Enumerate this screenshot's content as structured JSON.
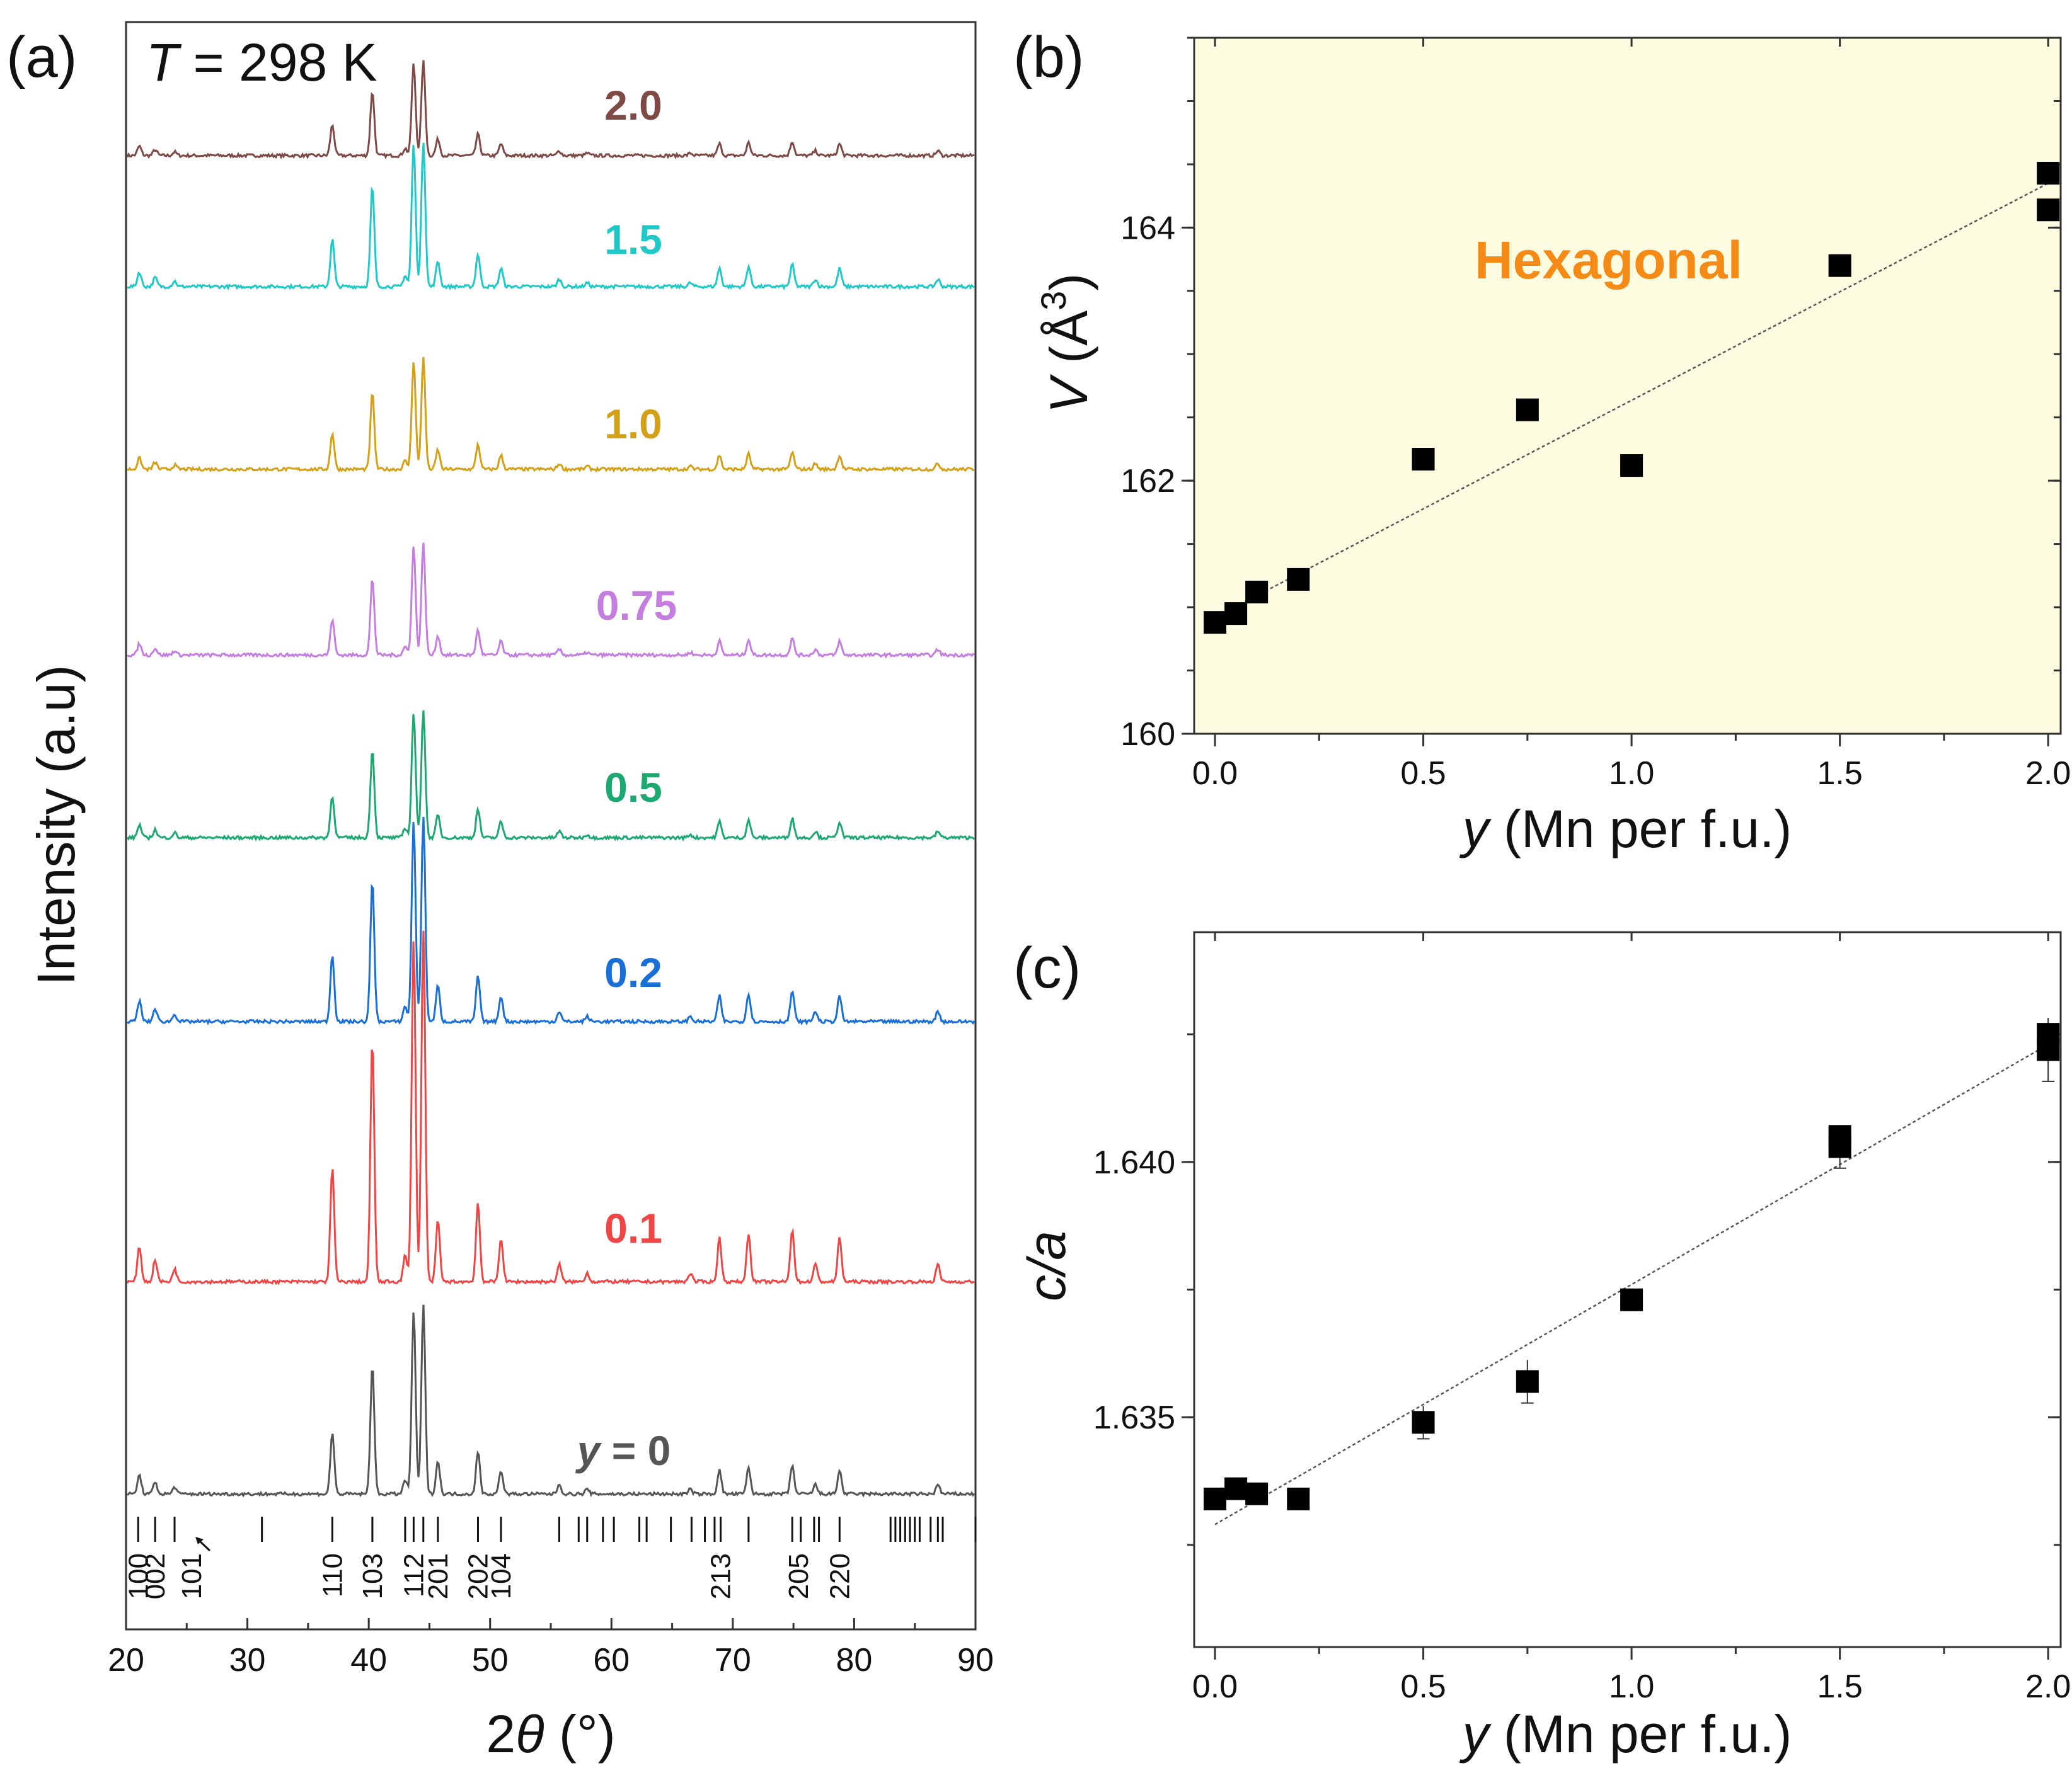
{
  "chart_data": [
    {
      "type": "line",
      "panel": "(a)",
      "annotation_prefix": "T",
      "annotation_suffix": " = 298 K",
      "xlabel_prefix": "2",
      "xlabel_symbol": "θ",
      "xlabel_suffix": " (°)",
      "ylabel": "Intensity (a.u)",
      "xlim": [
        20,
        90
      ],
      "xticks": [
        "20",
        "30",
        "40",
        "50",
        "60",
        "70",
        "80",
        "90"
      ],
      "peaks": [
        {
          "x": 21.1,
          "h": 0.08
        },
        {
          "x": 22.4,
          "h": 0.05
        },
        {
          "x": 24.0,
          "h": 0.03
        },
        {
          "x": 37.0,
          "h": 0.26
        },
        {
          "x": 40.3,
          "h": 0.55
        },
        {
          "x": 43.0,
          "h": 0.06
        },
        {
          "x": 43.7,
          "h": 0.78
        },
        {
          "x": 44.5,
          "h": 0.8
        },
        {
          "x": 45.7,
          "h": 0.14
        },
        {
          "x": 49.0,
          "h": 0.18
        },
        {
          "x": 50.9,
          "h": 0.1
        },
        {
          "x": 55.7,
          "h": 0.04
        },
        {
          "x": 58.0,
          "h": 0.02
        },
        {
          "x": 66.5,
          "h": 0.02
        },
        {
          "x": 68.9,
          "h": 0.1
        },
        {
          "x": 71.3,
          "h": 0.11
        },
        {
          "x": 74.9,
          "h": 0.12
        },
        {
          "x": 76.8,
          "h": 0.04
        },
        {
          "x": 78.8,
          "h": 0.1
        },
        {
          "x": 86.9,
          "h": 0.04
        }
      ],
      "series": [
        {
          "name": "2.0",
          "label": "2.0",
          "color": "#7f4a46",
          "scale": 0.55
        },
        {
          "name": "1.5",
          "label": "1.5",
          "color": "#20c8c8",
          "scale": 0.85
        },
        {
          "name": "1.0",
          "label": "1.0",
          "color": "#d4a017",
          "scale": 0.65
        },
        {
          "name": "0.75",
          "label": "0.75",
          "color": "#c57ee0",
          "scale": 0.65
        },
        {
          "name": "0.5",
          "label": "0.5",
          "color": "#1ca870",
          "scale": 0.75
        },
        {
          "name": "0.2",
          "label": "0.2",
          "color": "#1a6fd6",
          "scale": 1.2
        },
        {
          "name": "0.1",
          "label": "0.1",
          "color": "#f04545",
          "scale": 2.05
        },
        {
          "name": "0",
          "label_prefix": "y",
          "label": " = 0",
          "color": "#555555",
          "scale": 1.1
        }
      ],
      "reflection_ticks": [
        21.0,
        22.4,
        24.0,
        31.2,
        37.0,
        40.3,
        43.0,
        43.7,
        44.5,
        45.7,
        49.0,
        50.9,
        55.7,
        57.3,
        58.0,
        59.3,
        60.2,
        62.3,
        62.9,
        64.9,
        66.6,
        67.7,
        68.5,
        69.0,
        71.3,
        74.9,
        75.6,
        76.7,
        77.1,
        78.8,
        83.0,
        83.4,
        83.8,
        84.2,
        84.6,
        85.0,
        85.4,
        86.3,
        86.9,
        87.3,
        90.0
      ],
      "reflection_labels": [
        {
          "x": 21.0,
          "label": "100"
        },
        {
          "x": 22.4,
          "label": "002"
        },
        {
          "x": 25.4,
          "label": "101"
        },
        {
          "x": 37.0,
          "label": "110"
        },
        {
          "x": 40.3,
          "label": "103"
        },
        {
          "x": 43.7,
          "label": "112"
        },
        {
          "x": 45.7,
          "label": "201"
        },
        {
          "x": 49.0,
          "label": "202"
        },
        {
          "x": 50.9,
          "label": "104"
        },
        {
          "x": 69.0,
          "label": "213"
        },
        {
          "x": 75.4,
          "label": "205"
        },
        {
          "x": 78.8,
          "label": "220"
        }
      ]
    },
    {
      "type": "scatter",
      "panel": "(b)",
      "annotation": "Hexagonal",
      "annotation_color": "#f58a17",
      "background": "#fdfbe0",
      "xlabel_prefix": "y",
      "xlabel_suffix": " (Mn per f.u.)",
      "ylabel_prefix": "V",
      "ylabel_suffix": " (Å",
      "ylabel_sup": "3",
      "ylabel_close": ")",
      "xlim": [
        -0.05,
        2.03
      ],
      "ylim": [
        160,
        165.5
      ],
      "xticks": [
        "0.0",
        "0.5",
        "1.0",
        "1.5",
        "2.0"
      ],
      "yticks": [
        "160",
        "162",
        "164"
      ],
      "x": [
        0.0,
        0.05,
        0.1,
        0.2,
        0.5,
        0.75,
        1.0,
        1.5,
        2.0,
        2.0
      ],
      "y": [
        160.88,
        160.95,
        161.12,
        161.22,
        162.17,
        162.56,
        162.12,
        163.7,
        164.14,
        164.43
      ],
      "fit": {
        "x": [
          0.0,
          2.0
        ],
        "y": [
          160.92,
          164.35
        ]
      }
    },
    {
      "type": "scatter",
      "panel": "(c)",
      "xlabel_prefix": "y",
      "xlabel_suffix": " (Mn per f.u.)",
      "ylabel": "c/a",
      "xlim": [
        -0.05,
        2.03
      ],
      "ylim": [
        1.6305,
        1.6445
      ],
      "xticks": [
        "0.0",
        "0.5",
        "1.0",
        "1.5",
        "2.0"
      ],
      "yticks": [
        "1.635",
        "1.640"
      ],
      "x": [
        0.0,
        0.05,
        0.1,
        0.2,
        0.5,
        0.75,
        1.0,
        1.5,
        1.5,
        2.0,
        2.0
      ],
      "y": [
        1.6334,
        1.6336,
        1.6335,
        1.6334,
        1.6349,
        1.6357,
        1.6373,
        1.6403,
        1.6405,
        1.6422,
        1.6425
      ],
      "err": [
        0,
        0,
        0,
        0,
        0.0001,
        0.0002,
        0,
        0.0002,
        0,
        0.0004,
        0
      ],
      "fit": {
        "x": [
          0.0,
          2.0
        ],
        "y": [
          1.6329,
          1.6423
        ]
      }
    }
  ]
}
